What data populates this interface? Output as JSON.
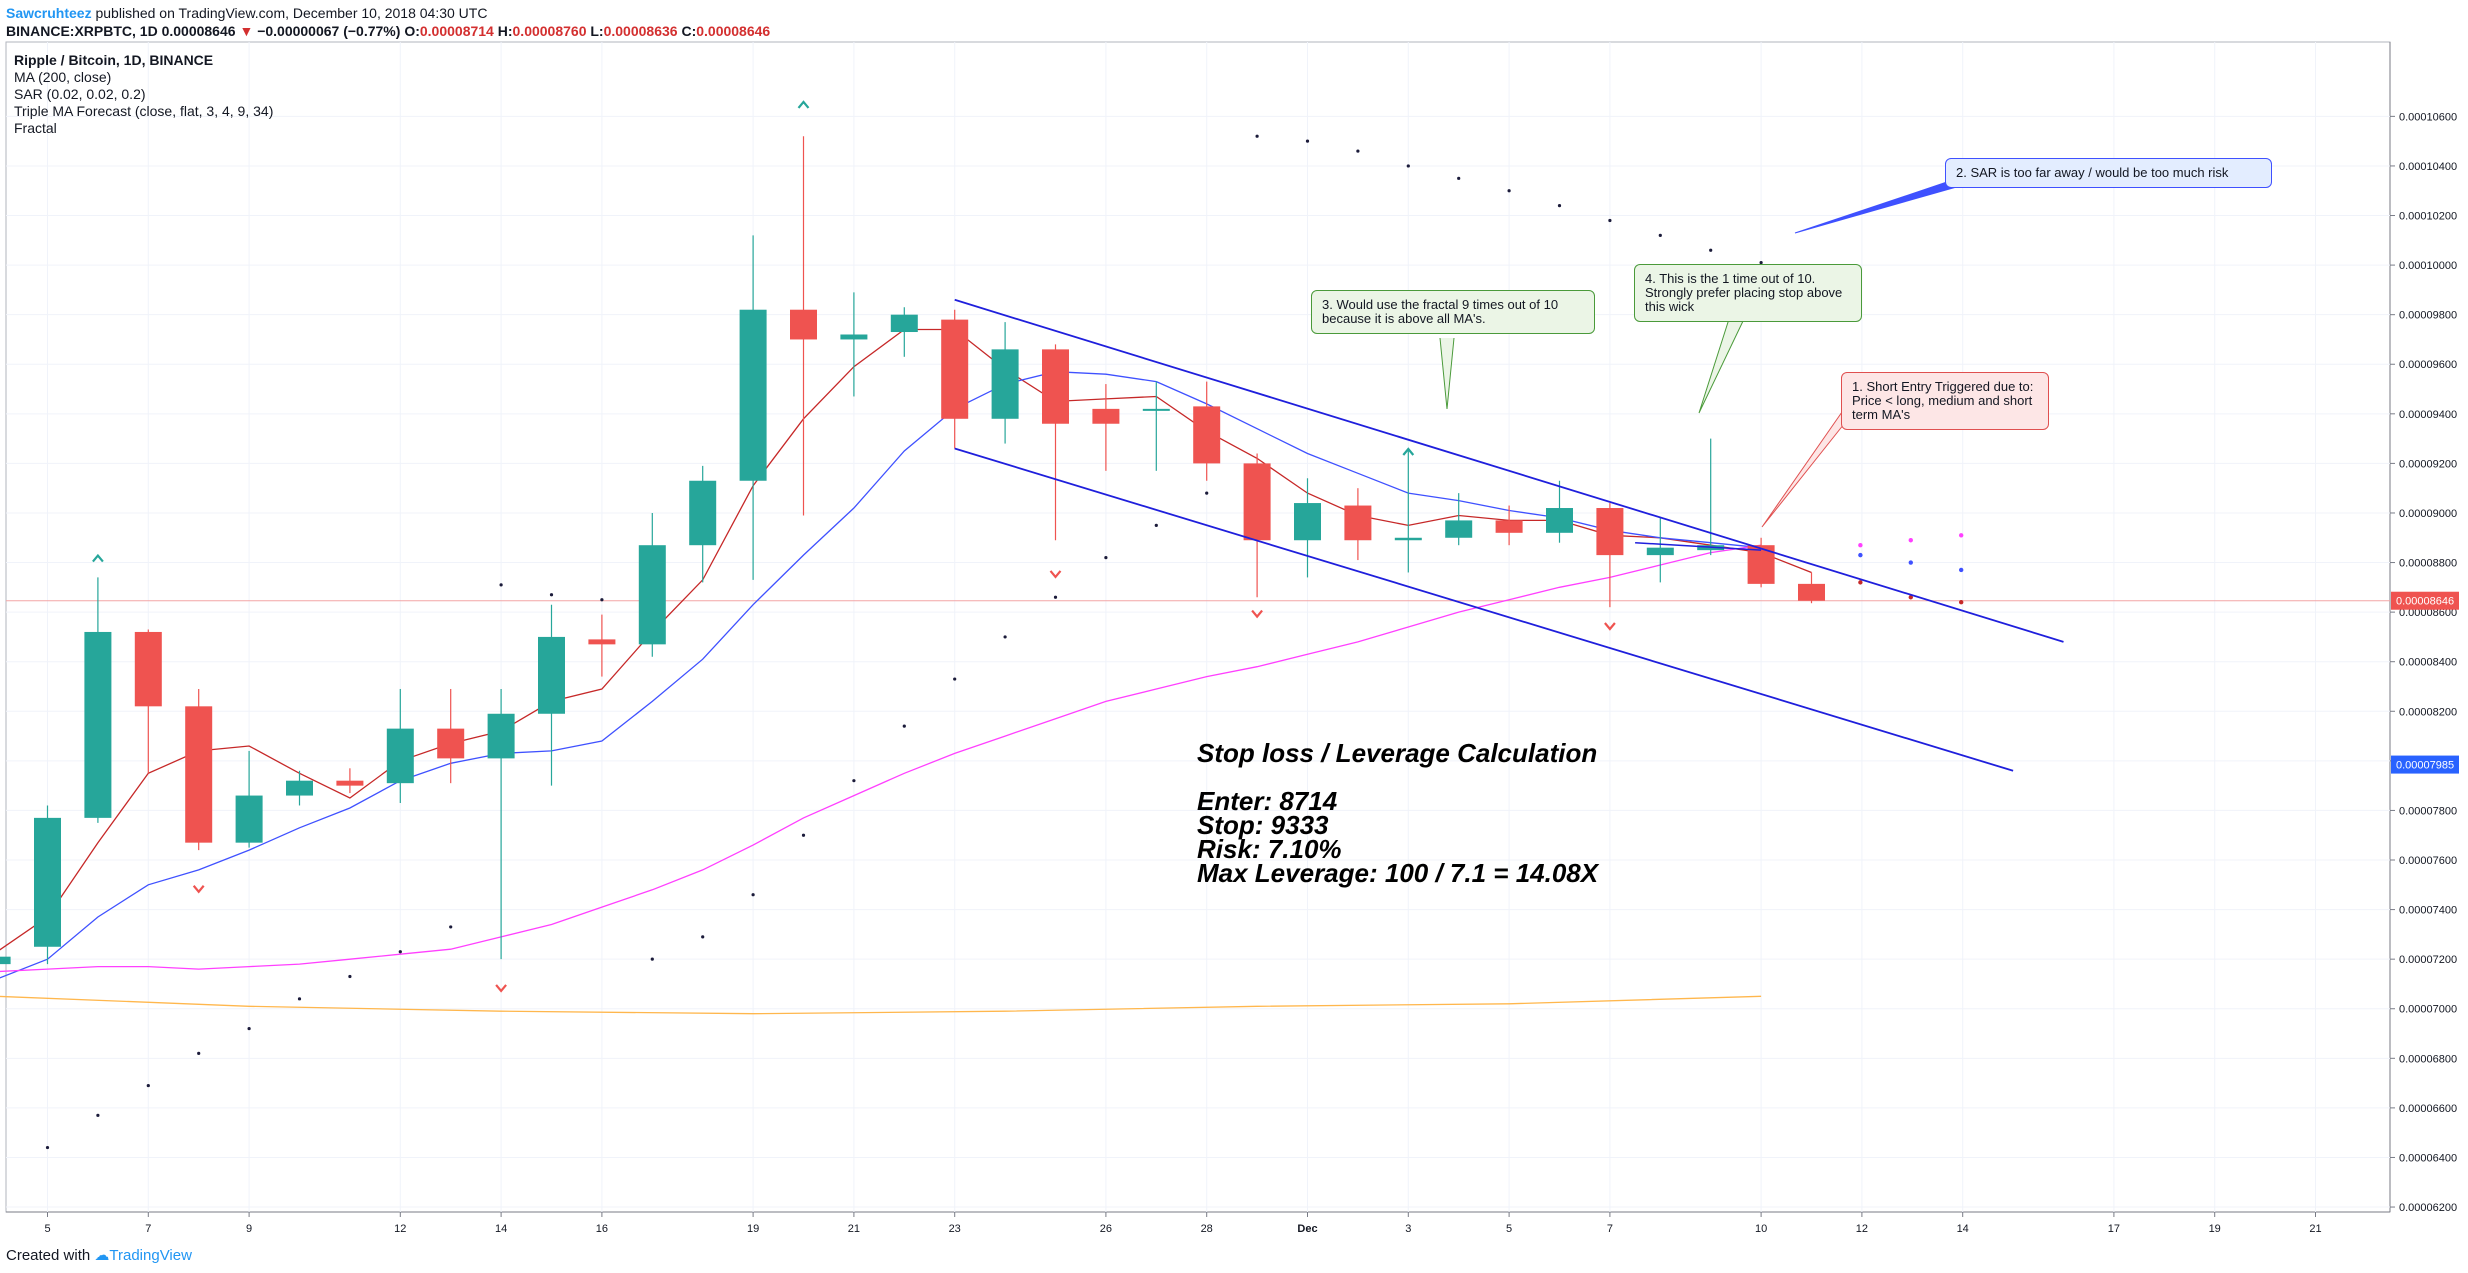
{
  "header": {
    "author": "Sawcruhteez",
    "published": "published on TradingView.com, December 10, 2018 04:30 UTC",
    "symbol": "BINANCE:XRPBTC, 1D",
    "last": "0.00008646",
    "change_arrow": "▼",
    "change": "−0.00000067 (−0.77%)",
    "o_label": "O:",
    "o": "0.00008714",
    "h_label": "H:",
    "h": "0.00008760",
    "l_label": "L:",
    "l": "0.00008636",
    "c_label": "C:",
    "c": "0.00008646"
  },
  "legend": {
    "title": "Ripple / Bitcoin, 1D, BINANCE",
    "ma": "MA (200, close)",
    "sar": "SAR (0.02, 0.02, 0.2)",
    "triple": "Triple MA Forecast (close, flat, 3, 4, 9, 34)",
    "fractal": "Fractal"
  },
  "annotations": {
    "calc_title": "Stop loss / Leverage Calculation",
    "enter": "Enter: 8714",
    "stop": "Stop: 9333",
    "risk": "Risk: 7.10%",
    "leverage": "Max Leverage: 100 / 7.1 = 14.08X",
    "note1": "1. Short Entry Triggered due to: Price < long, medium and short term MA's",
    "note2": "2. SAR is too far away / would be too much risk",
    "note3": "3. Would use the fractal 9 times out of 10 because it is above all MA's.",
    "note4": "4. This is the 1 time out of 10. Strongly prefer placing stop above this wick"
  },
  "footer": {
    "created": "Created with",
    "brand": "TradingView"
  },
  "colors": {
    "up": "#26a69a",
    "down": "#ef5350",
    "ma200": "#ffb74d",
    "ma_short": "#c62828",
    "ma_medium": "#3f51ff",
    "ma_long": "#ff40ff",
    "channel": "#1f1fdc"
  },
  "chart_data": {
    "type": "candlestick",
    "symbol": "XRPBTC",
    "ylim": [
      6.18e-05,
      0.000109
    ],
    "price_ticks": [
      "0.00010600",
      "0.00010400",
      "0.00010200",
      "0.00010000",
      "0.00009800",
      "0.00009600",
      "0.00009400",
      "0.00009200",
      "0.00009000",
      "0.00008800",
      "0.00008600",
      "0.00008400",
      "0.00008200",
      "0.00008000",
      "0.00007800",
      "0.00007600",
      "0.00007400",
      "0.00007200",
      "0.00007000",
      "0.00006800",
      "0.00006600",
      "0.00006400",
      "0.00006200"
    ],
    "last_price_label": "0.00008646",
    "marker_price_label": "0.00007985",
    "x_labels": [
      {
        "i": 0,
        "t": "5"
      },
      {
        "i": 2,
        "t": "7"
      },
      {
        "i": 4,
        "t": "9"
      },
      {
        "i": 7,
        "t": "12"
      },
      {
        "i": 9,
        "t": "14"
      },
      {
        "i": 11,
        "t": "16"
      },
      {
        "i": 14,
        "t": "19"
      },
      {
        "i": 16,
        "t": "21"
      },
      {
        "i": 18,
        "t": "23"
      },
      {
        "i": 21,
        "t": "26"
      },
      {
        "i": 23,
        "t": "28"
      },
      {
        "i": 25,
        "t": "Dec"
      },
      {
        "i": 27,
        "t": "3"
      },
      {
        "i": 29,
        "t": "5"
      },
      {
        "i": 31,
        "t": "7"
      },
      {
        "i": 34,
        "t": "10"
      },
      {
        "i": 36,
        "t": "12"
      },
      {
        "i": 38,
        "t": "14"
      },
      {
        "i": 41,
        "t": "17"
      },
      {
        "i": 43,
        "t": "19"
      },
      {
        "i": 45,
        "t": "21"
      }
    ],
    "candles": [
      {
        "i": -1,
        "o": 7180,
        "h": 7210,
        "l": 7150,
        "c": 7210
      },
      {
        "i": 0,
        "o": 7250,
        "h": 7820,
        "l": 7180,
        "c": 7770
      },
      {
        "i": 1,
        "o": 7770,
        "h": 8740,
        "l": 7750,
        "c": 8520
      },
      {
        "i": 2,
        "o": 8520,
        "h": 8530,
        "l": 7950,
        "c": 8220
      },
      {
        "i": 3,
        "o": 8220,
        "h": 8290,
        "l": 7640,
        "c": 7670
      },
      {
        "i": 4,
        "o": 7670,
        "h": 8040,
        "l": 7650,
        "c": 7860
      },
      {
        "i": 5,
        "o": 7860,
        "h": 7960,
        "l": 7820,
        "c": 7920
      },
      {
        "i": 6,
        "o": 7920,
        "h": 7970,
        "l": 7870,
        "c": 7900
      },
      {
        "i": 7,
        "o": 7910,
        "h": 8290,
        "l": 7830,
        "c": 8130
      },
      {
        "i": 8,
        "o": 8130,
        "h": 8290,
        "l": 7910,
        "c": 8010
      },
      {
        "i": 9,
        "o": 8010,
        "h": 8290,
        "l": 7200,
        "c": 8190
      },
      {
        "i": 10,
        "o": 8190,
        "h": 8630,
        "l": 7900,
        "c": 8500
      },
      {
        "i": 11,
        "o": 8490,
        "h": 8590,
        "l": 8340,
        "c": 8470
      },
      {
        "i": 12,
        "o": 8470,
        "h": 9000,
        "l": 8420,
        "c": 8870
      },
      {
        "i": 13,
        "o": 8870,
        "h": 9190,
        "l": 8720,
        "c": 9130
      },
      {
        "i": 14,
        "o": 9130,
        "h": 10120,
        "l": 8730,
        "c": 9820
      },
      {
        "i": 15,
        "o": 9820,
        "h": 10520,
        "l": 8990,
        "c": 9700
      },
      {
        "i": 16,
        "o": 9700,
        "h": 9890,
        "l": 9470,
        "c": 9720
      },
      {
        "i": 17,
        "o": 9730,
        "h": 9830,
        "l": 9630,
        "c": 9800
      },
      {
        "i": 18,
        "o": 9780,
        "h": 9820,
        "l": 9260,
        "c": 9380
      },
      {
        "i": 19,
        "o": 9380,
        "h": 9770,
        "l": 9280,
        "c": 9660
      },
      {
        "i": 20,
        "o": 9660,
        "h": 9680,
        "l": 8890,
        "c": 9360
      },
      {
        "i": 21,
        "o": 9420,
        "h": 9520,
        "l": 9170,
        "c": 9360
      },
      {
        "i": 22,
        "o": 9420,
        "h": 9530,
        "l": 9170,
        "c": 9420
      },
      {
        "i": 23,
        "o": 9430,
        "h": 9530,
        "l": 9130,
        "c": 9200
      },
      {
        "i": 24,
        "o": 9200,
        "h": 9240,
        "l": 8660,
        "c": 8890
      },
      {
        "i": 25,
        "o": 8890,
        "h": 9140,
        "l": 8740,
        "c": 9040
      },
      {
        "i": 26,
        "o": 9030,
        "h": 9100,
        "l": 8810,
        "c": 8890
      },
      {
        "i": 27,
        "o": 8890,
        "h": 9260,
        "l": 8760,
        "c": 8900
      },
      {
        "i": 28,
        "o": 8900,
        "h": 9080,
        "l": 8870,
        "c": 8970
      },
      {
        "i": 29,
        "o": 8970,
        "h": 9030,
        "l": 8870,
        "c": 8920
      },
      {
        "i": 30,
        "o": 8920,
        "h": 9130,
        "l": 8880,
        "c": 9020
      },
      {
        "i": 31,
        "o": 9020,
        "h": 9040,
        "l": 8620,
        "c": 8830
      },
      {
        "i": 32,
        "o": 8830,
        "h": 8980,
        "l": 8720,
        "c": 8860
      },
      {
        "i": 33,
        "o": 8850,
        "h": 9300,
        "l": 8830,
        "c": 8870
      },
      {
        "i": 34,
        "o": 8870,
        "h": 8900,
        "l": 8700,
        "c": 8714
      },
      {
        "i": 35,
        "o": 8714,
        "h": 8760,
        "l": 8636,
        "c": 8646
      }
    ],
    "series": [
      {
        "name": "MA (200, close)",
        "points": [
          [
            -1,
            7050
          ],
          [
            4,
            7010
          ],
          [
            9,
            6990
          ],
          [
            14,
            6980
          ],
          [
            19,
            6990
          ],
          [
            24,
            7010
          ],
          [
            29,
            7020
          ],
          [
            34,
            7050
          ]
        ]
      },
      {
        "name": "Triple MA Forecast short",
        "points": [
          [
            -1,
            7230
          ],
          [
            0,
            7370
          ],
          [
            1,
            7670
          ],
          [
            2,
            7950
          ],
          [
            3,
            8040
          ],
          [
            4,
            8060
          ],
          [
            5,
            7950
          ],
          [
            6,
            7850
          ],
          [
            7,
            8000
          ],
          [
            8,
            8070
          ],
          [
            9,
            8120
          ],
          [
            10,
            8240
          ],
          [
            11,
            8290
          ],
          [
            12,
            8520
          ],
          [
            13,
            8730
          ],
          [
            14,
            9110
          ],
          [
            15,
            9380
          ],
          [
            16,
            9590
          ],
          [
            17,
            9740
          ],
          [
            18,
            9740
          ],
          [
            19,
            9580
          ],
          [
            20,
            9450
          ],
          [
            21,
            9460
          ],
          [
            22,
            9470
          ],
          [
            23,
            9330
          ],
          [
            24,
            9220
          ],
          [
            25,
            9080
          ],
          [
            26,
            8990
          ],
          [
            27,
            8950
          ],
          [
            28,
            8990
          ],
          [
            29,
            8970
          ],
          [
            30,
            8970
          ],
          [
            31,
            8910
          ],
          [
            32,
            8900
          ],
          [
            33,
            8870
          ],
          [
            34,
            8840
          ],
          [
            35,
            8760
          ]
        ]
      },
      {
        "name": "Triple MA Forecast medium",
        "points": [
          [
            -1,
            7120
          ],
          [
            0,
            7200
          ],
          [
            1,
            7370
          ],
          [
            2,
            7500
          ],
          [
            3,
            7560
          ],
          [
            4,
            7640
          ],
          [
            5,
            7730
          ],
          [
            6,
            7810
          ],
          [
            7,
            7920
          ],
          [
            8,
            7990
          ],
          [
            9,
            8030
          ],
          [
            10,
            8040
          ],
          [
            11,
            8080
          ],
          [
            12,
            8240
          ],
          [
            13,
            8410
          ],
          [
            14,
            8630
          ],
          [
            15,
            8830
          ],
          [
            16,
            9020
          ],
          [
            17,
            9250
          ],
          [
            18,
            9420
          ],
          [
            19,
            9520
          ],
          [
            20,
            9570
          ],
          [
            21,
            9560
          ],
          [
            22,
            9530
          ],
          [
            23,
            9440
          ],
          [
            24,
            9340
          ],
          [
            25,
            9240
          ],
          [
            26,
            9160
          ],
          [
            27,
            9080
          ],
          [
            28,
            9050
          ],
          [
            29,
            9010
          ],
          [
            30,
            8980
          ],
          [
            31,
            8930
          ],
          [
            32,
            8900
          ],
          [
            33,
            8880
          ],
          [
            34,
            8860
          ]
        ]
      },
      {
        "name": "Triple MA Forecast long",
        "points": [
          [
            -1,
            7150
          ],
          [
            0,
            7160
          ],
          [
            1,
            7170
          ],
          [
            2,
            7170
          ],
          [
            3,
            7160
          ],
          [
            4,
            7170
          ],
          [
            5,
            7180
          ],
          [
            6,
            7200
          ],
          [
            7,
            7220
          ],
          [
            8,
            7240
          ],
          [
            9,
            7290
          ],
          [
            10,
            7340
          ],
          [
            11,
            7410
          ],
          [
            12,
            7480
          ],
          [
            13,
            7560
          ],
          [
            14,
            7660
          ],
          [
            15,
            7770
          ],
          [
            16,
            7860
          ],
          [
            17,
            7950
          ],
          [
            18,
            8030
          ],
          [
            19,
            8100
          ],
          [
            20,
            8170
          ],
          [
            21,
            8240
          ],
          [
            22,
            8290
          ],
          [
            23,
            8340
          ],
          [
            24,
            8380
          ],
          [
            25,
            8430
          ],
          [
            26,
            8480
          ],
          [
            27,
            8540
          ],
          [
            28,
            8600
          ],
          [
            29,
            8650
          ],
          [
            30,
            8700
          ],
          [
            31,
            8740
          ],
          [
            32,
            8790
          ],
          [
            33,
            8840
          ],
          [
            34,
            8870
          ]
        ]
      }
    ],
    "sar": [
      [
        0,
        6440
      ],
      [
        1,
        6570
      ],
      [
        2,
        6690
      ],
      [
        3,
        6820
      ],
      [
        4,
        6920
      ],
      [
        5,
        7040
      ],
      [
        6,
        7130
      ],
      [
        7,
        7230
      ],
      [
        8,
        7330
      ],
      [
        9,
        8710
      ],
      [
        10,
        8670
      ],
      [
        11,
        8650
      ],
      [
        12,
        7200
      ],
      [
        13,
        7290
      ],
      [
        14,
        7460
      ],
      [
        15,
        7700
      ],
      [
        16,
        7920
      ],
      [
        17,
        8140
      ],
      [
        18,
        8330
      ],
      [
        19,
        8500
      ],
      [
        20,
        8660
      ],
      [
        21,
        8820
      ],
      [
        22,
        8950
      ],
      [
        23,
        9080
      ],
      [
        24,
        10520
      ],
      [
        25,
        10500
      ],
      [
        26,
        10460
      ],
      [
        27,
        10400
      ],
      [
        28,
        10350
      ],
      [
        29,
        10300
      ],
      [
        30,
        10240
      ],
      [
        31,
        10180
      ],
      [
        32,
        10120
      ],
      [
        33,
        10060
      ],
      [
        34,
        10010
      ]
    ],
    "fractals_up": [
      [
        1,
        8820
      ],
      [
        15,
        10650
      ],
      [
        27,
        9250
      ]
    ],
    "fractals_down": [
      [
        3,
        7480
      ],
      [
        9,
        7080
      ],
      [
        20,
        8750
      ],
      [
        24,
        8590
      ],
      [
        31,
        8540
      ]
    ],
    "forecast_dots": [
      {
        "i": 35.97,
        "v": 8870,
        "c": "#ff40ff"
      },
      {
        "i": 36.97,
        "v": 8890,
        "c": "#ff40ff"
      },
      {
        "i": 37.97,
        "v": 8910,
        "c": "#ff40ff"
      },
      {
        "i": 35.97,
        "v": 8830,
        "c": "#3f51ff"
      },
      {
        "i": 36.97,
        "v": 8800,
        "c": "#3f51ff"
      },
      {
        "i": 37.97,
        "v": 8770,
        "c": "#3f51ff"
      },
      {
        "i": 35.97,
        "v": 8720,
        "c": "#c62828"
      },
      {
        "i": 36.97,
        "v": 8660,
        "c": "#c62828"
      },
      {
        "i": 37.97,
        "v": 8640,
        "c": "#c62828"
      }
    ],
    "trendlines": [
      {
        "name": "channel-upper",
        "from": [
          18,
          9860
        ],
        "to": [
          40,
          8480
        ]
      },
      {
        "name": "channel-lower",
        "from": [
          18,
          9260
        ],
        "to": [
          39,
          7960
        ]
      },
      {
        "name": "entry-line",
        "from": [
          31.5,
          8880
        ],
        "to": [
          34,
          8850
        ]
      }
    ]
  }
}
